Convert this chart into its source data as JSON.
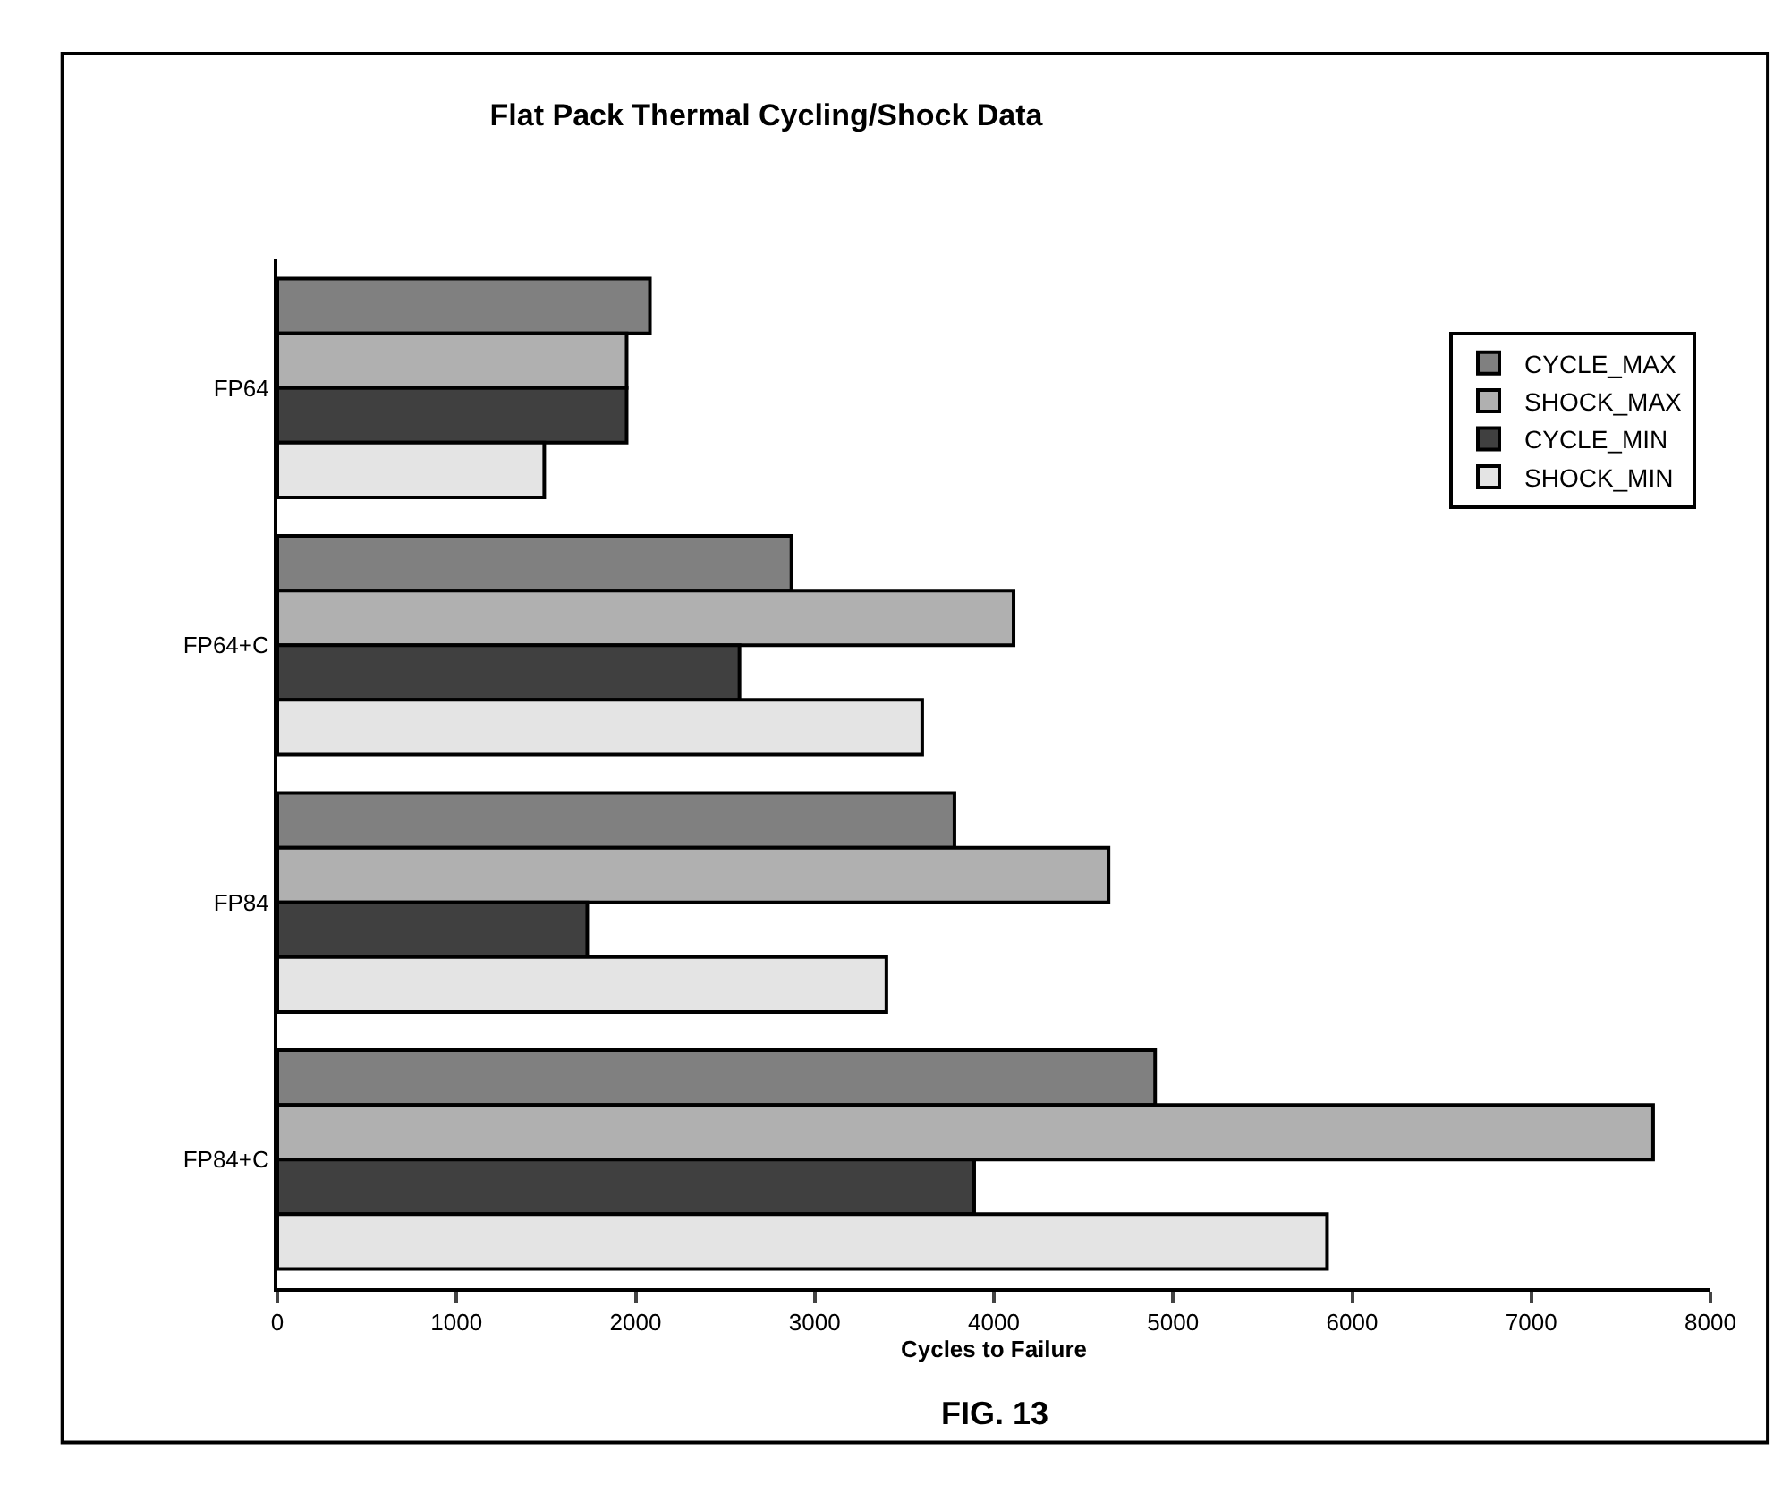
{
  "chart_data": {
    "type": "bar",
    "orientation": "horizontal",
    "title": "Flat Pack Thermal Cycling/Shock Data",
    "xlabel": "Cycles to Failure",
    "categories": [
      "FP64",
      "FP64+C",
      "FP84",
      "FP84+C"
    ],
    "series": [
      {
        "name": "CYCLE_MAX",
        "color": "#808080",
        "values": [
          2080,
          2870,
          3780,
          4900
        ]
      },
      {
        "name": "SHOCK_MAX",
        "color": "#b0b0b0",
        "values": [
          1950,
          4110,
          4640,
          7680
        ]
      },
      {
        "name": "CYCLE_MIN",
        "color": "#404040",
        "values": [
          1950,
          2580,
          1730,
          3890
        ]
      },
      {
        "name": "SHOCK_MIN",
        "color": "#e4e4e4",
        "values": [
          1490,
          3600,
          3400,
          5860
        ]
      }
    ],
    "xlim": [
      0,
      8000
    ],
    "xticks": [
      0,
      1000,
      2000,
      3000,
      4000,
      5000,
      6000,
      7000,
      8000
    ],
    "legend": "top right",
    "annotations": [
      "FIG. 13"
    ]
  }
}
